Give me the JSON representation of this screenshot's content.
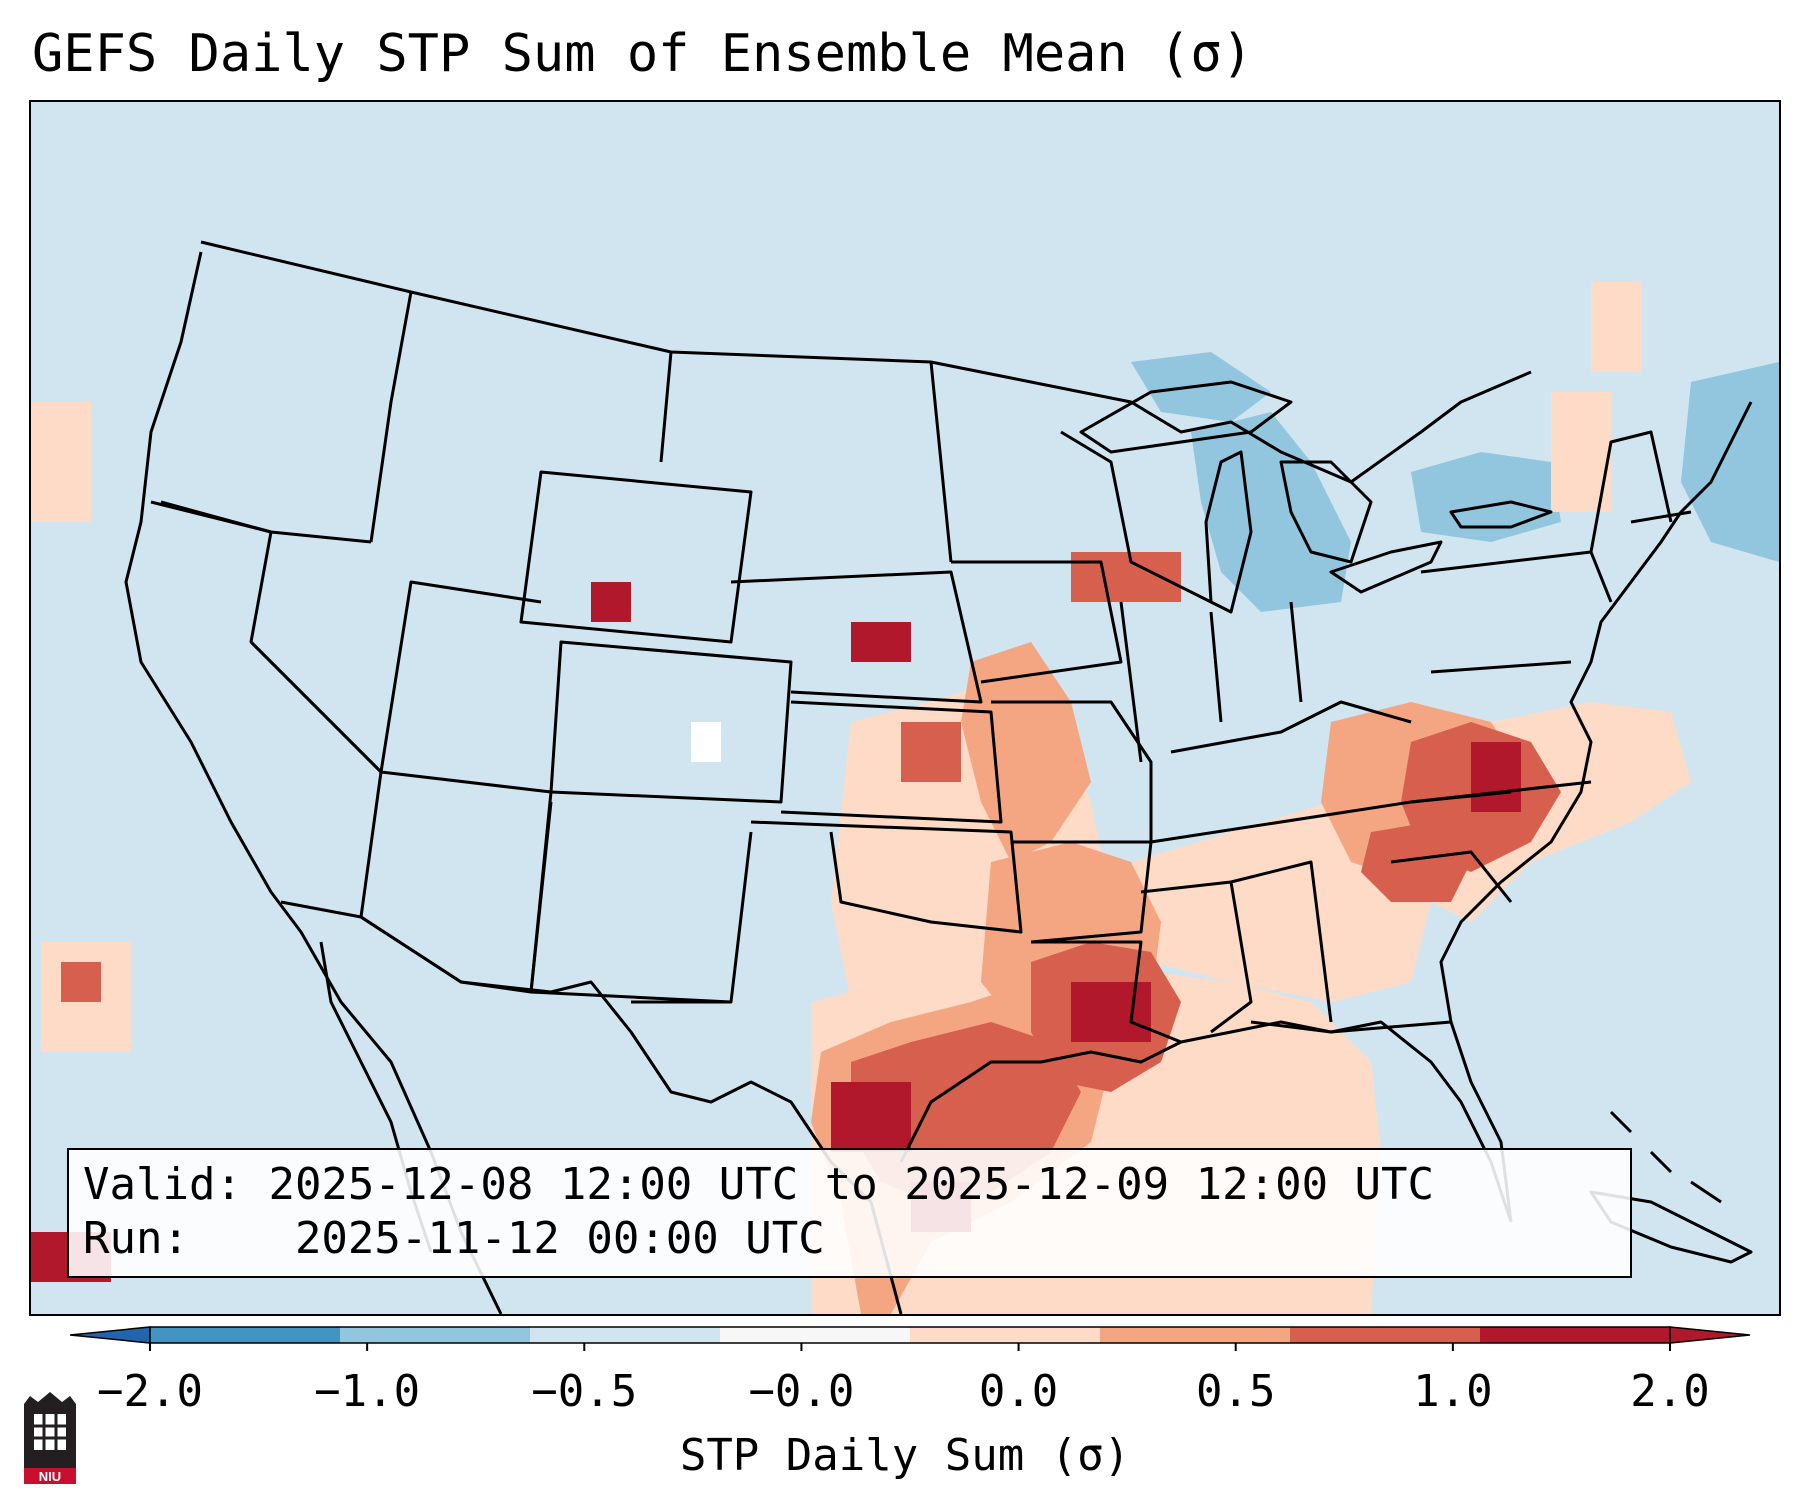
{
  "title": "GEFS Daily STP Sum of Ensemble Mean (σ)",
  "info": {
    "valid_label": "Valid:",
    "valid_value": "2025-12-08 12:00 UTC to 2025-12-09 12:00 UTC",
    "run_label": "Run:",
    "run_value": "2025-11-12 00:00 UTC"
  },
  "colorbar": {
    "label": "STP Daily Sum (σ)",
    "ticks": [
      "−2.0",
      "−1.0",
      "−0.5",
      "−0.0",
      "0.0",
      "0.5",
      "1.0",
      "2.0"
    ],
    "colors": [
      "#4393c3",
      "#92c5de",
      "#d1e5f0",
      "#f7f7f7",
      "#fddbc7",
      "#f4a582",
      "#d6604d",
      "#b2182b"
    ],
    "under_color": "#2166ac",
    "over_color": "#b2182b"
  },
  "map": {
    "background_color": "#d1e5f0",
    "outline_color": "#000000"
  },
  "logo": {
    "text": "NIU",
    "colors": {
      "shield": "#231f20",
      "band": "#c8102e"
    }
  }
}
